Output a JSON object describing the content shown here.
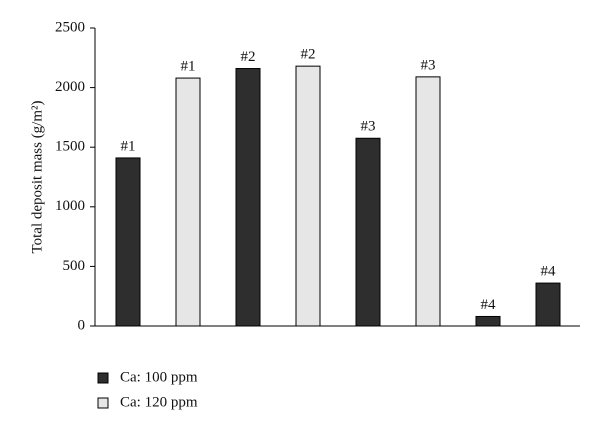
{
  "chart_data": {
    "type": "bar",
    "y_label": "Total deposit mass (g/m²)",
    "categories": [
      "#1",
      "#2",
      "#3",
      "#4"
    ],
    "series": [
      {
        "name": "Ca: 100 ppm",
        "color": "#2e2e2e",
        "values": [
          1410,
          2160,
          1575,
          80
        ]
      },
      {
        "name": "Ca: 120 ppm",
        "color": "#e6e6e6",
        "point_colors": [
          "#e6e6e6",
          "#e6e6e6",
          "#e6e6e6",
          "#2e2e2e"
        ],
        "values": [
          2080,
          2180,
          2090,
          360
        ]
      }
    ],
    "ylim": [
      0,
      2500
    ],
    "yticks": [
      0,
      500,
      1000,
      1500,
      2000,
      2500
    ],
    "grid": false
  }
}
